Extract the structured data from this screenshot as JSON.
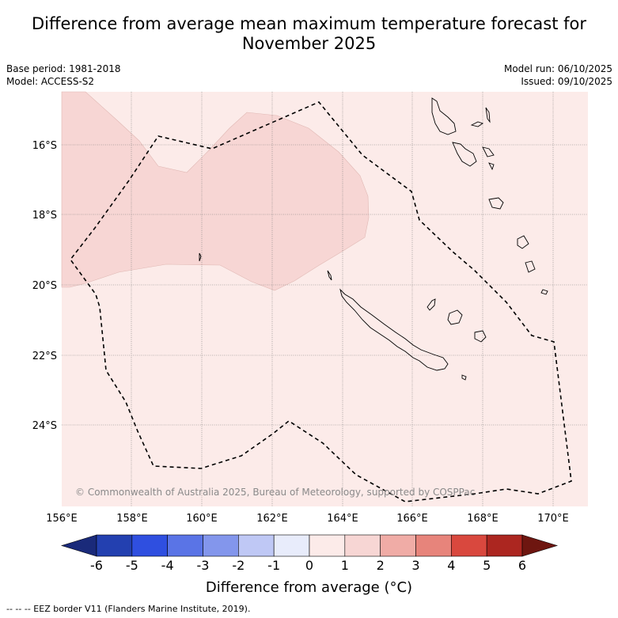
{
  "title_line1": "Difference from average mean maximum temperature forecast for",
  "title_line2": "November 2025",
  "base_period": "Base period: 1981-2018",
  "model": "Model: ACCESS-S2",
  "model_run": "Model run: 06/10/2025",
  "issued": "Issued: 09/10/2025",
  "copyright": "© Commonwealth of Australia 2025, Bureau of Meteorology, supported by COSPPac",
  "lon_ticks": [
    "156°E",
    "158°E",
    "160°E",
    "162°E",
    "164°E",
    "166°E",
    "168°E",
    "170°E"
  ],
  "lat_ticks": [
    "16°S",
    "18°S",
    "20°S",
    "22°S",
    "24°S"
  ],
  "colorbar": {
    "label": "Difference from average (°C)",
    "ticks": [
      "-6",
      "-5",
      "-4",
      "-3",
      "-2",
      "-1",
      "0",
      "1",
      "2",
      "3",
      "4",
      "5",
      "6"
    ],
    "colors": [
      "#1a2a7a",
      "#2340b0",
      "#2f4fe0",
      "#5a74e6",
      "#8396ec",
      "#bfc8f5",
      "#e8ecfb",
      "#fcebe9",
      "#f7d6d4",
      "#f0aca6",
      "#e7847b",
      "#d9483e",
      "#ac2620",
      "#6e1610"
    ]
  },
  "legend": {
    "main_fill": "#fcebe9",
    "anomaly_fill": "#f7d6d4"
  },
  "footer": "--  --  -- EEZ border V11 (Flanders Marine Institute, 2019)."
}
